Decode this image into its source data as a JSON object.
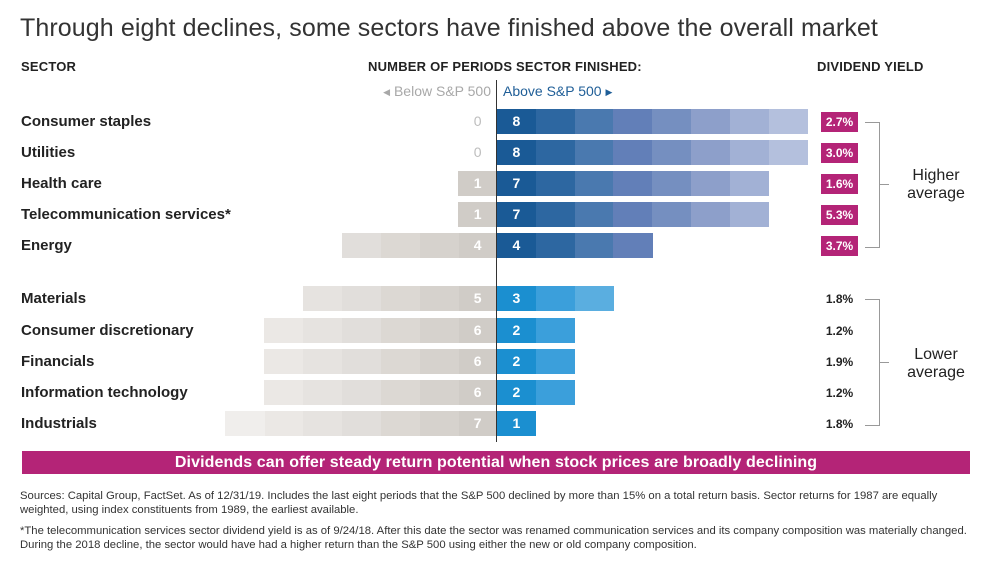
{
  "title": "Through eight declines, some sectors have finished above the overall market",
  "headers": {
    "sector": "SECTOR",
    "periods": "NUMBER OF PERIODS SECTOR FINISHED:",
    "dividend": "DIVIDEND YIELD",
    "below": "Below S&P 500",
    "above": "Above S&P 500"
  },
  "groups": {
    "higher": "Higher average",
    "lower": "Lower average"
  },
  "banner": "Dividends can offer steady return potential when stock prices are broadly declining",
  "sources": "Sources: Capital Group, FactSet. As of 12/31/19. Includes the last eight periods that the S&P 500 declined by more than 15% on a total return basis. Sector returns for 1987 are equally weighted, using index constituents from 1989, the earliest available.",
  "footnote": "*The telecommunication services sector dividend yield is as of 9/24/18. After this date the sector was renamed communication services and its company composition was materially changed. During the 2018 decline, the sector would have had a higher return than the S&P 500 using either the new or old company composition.",
  "chart_data": {
    "type": "bar",
    "orientation": "horizontal-diverging",
    "categories": [
      "Consumer staples",
      "Utilities",
      "Health care",
      "Telecommunication services*",
      "Energy",
      "Materials",
      "Consumer discretionary",
      "Financials",
      "Information technology",
      "Industrials"
    ],
    "series": [
      {
        "name": "Below S&P 500",
        "values": [
          0,
          0,
          1,
          1,
          4,
          5,
          6,
          6,
          6,
          7
        ]
      },
      {
        "name": "Above S&P 500",
        "values": [
          8,
          8,
          7,
          7,
          4,
          3,
          2,
          2,
          2,
          1
        ]
      }
    ],
    "dividend_yield": [
      "2.7%",
      "3.0%",
      "1.6%",
      "5.3%",
      "3.7%",
      "1.8%",
      "1.2%",
      "1.9%",
      "1.2%",
      "1.8%"
    ],
    "yield_group": [
      "Higher average",
      "Higher average",
      "Higher average",
      "Higher average",
      "Higher average",
      "Lower average",
      "Lower average",
      "Lower average",
      "Lower average",
      "Lower average"
    ],
    "xlim": [
      -8,
      8
    ],
    "colors": {
      "higher_above": [
        "#1a5a96",
        "#2d67a1",
        "#4a79af",
        "#627fb8",
        "#758fc0",
        "#8d9fca",
        "#a2b1d5",
        "#b4c0dd"
      ],
      "lower_above": [
        "#1b8fd0",
        "#3b9fdb",
        "#5aaee0"
      ],
      "below": [
        "#d0ccc7",
        "#d6d2cd",
        "#dcd8d3",
        "#e1dedb",
        "#e6e3e0",
        "#ebe8e5",
        "#f0eeec"
      ],
      "highlight": "#b42477"
    }
  }
}
